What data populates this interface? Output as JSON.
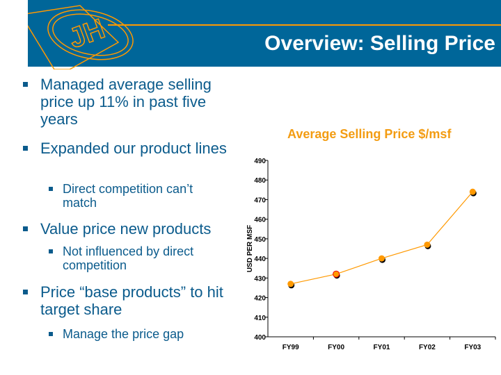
{
  "slide": {
    "title": "Overview: Selling Price",
    "bullets": [
      {
        "text": "Managed average selling price up 11% in past five years",
        "sub": []
      },
      {
        "text": "Expanded our product lines",
        "sub": [
          "Direct competition can’t match"
        ]
      },
      {
        "text": "Value price new products",
        "sub": [
          "Not influenced by direct competition"
        ]
      },
      {
        "text": "Price “base products” to hit target share",
        "sub": [
          "Manage the price gap"
        ]
      }
    ]
  },
  "logo": {
    "text": "JH"
  },
  "colors": {
    "banner": "#006699",
    "accent": "#FF9900",
    "text": "#0B5B8C"
  },
  "chart_data": {
    "type": "line",
    "title": "Average Selling Price $/msf",
    "xlabel": "",
    "ylabel": "USD PER MSF",
    "categories": [
      "FY99",
      "FY00",
      "FY01",
      "FY02",
      "FY03"
    ],
    "series": [
      {
        "name": "Average Selling Price",
        "values": [
          427,
          432,
          440,
          447,
          474
        ]
      }
    ],
    "ylim": [
      400,
      490
    ],
    "yticks": [
      400,
      410,
      420,
      430,
      440,
      450,
      460,
      470,
      480,
      490
    ],
    "grid": false
  }
}
